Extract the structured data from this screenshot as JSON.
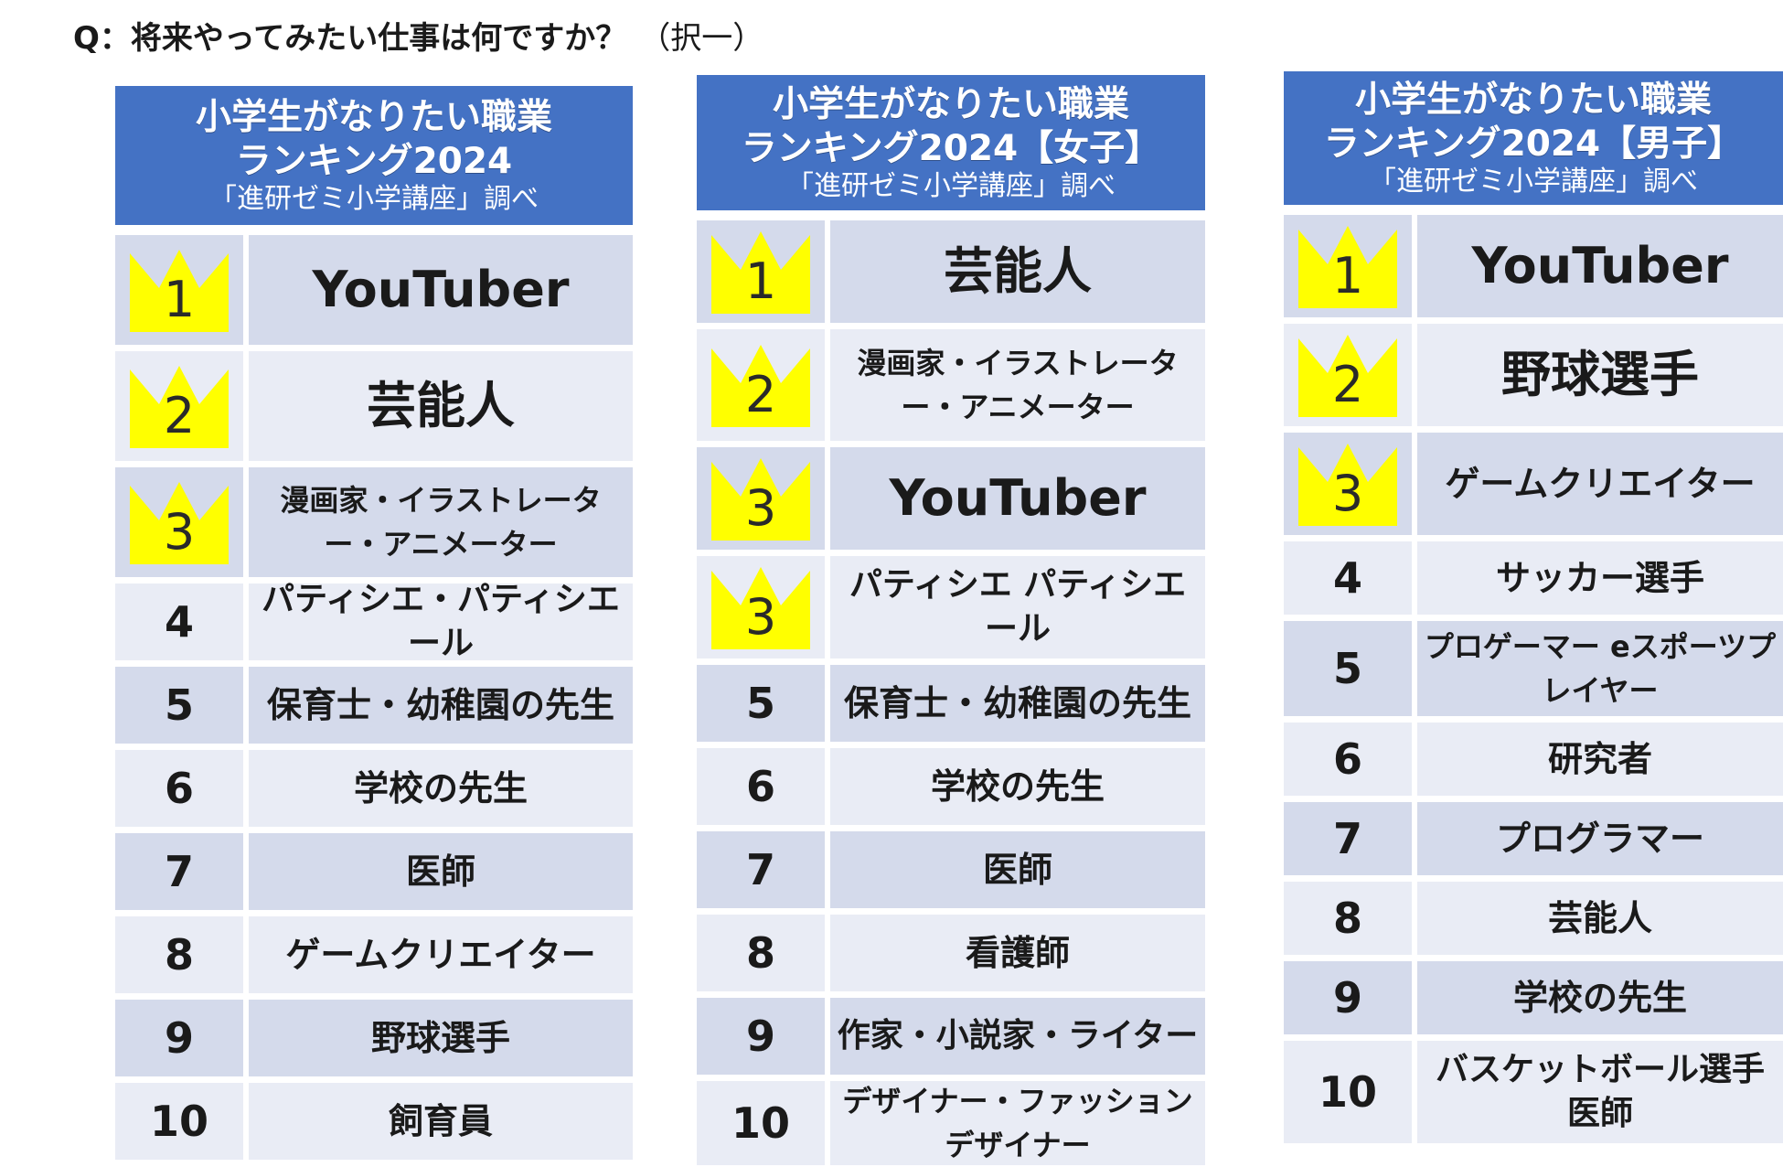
{
  "question": {
    "text": "Q：将来やってみたい仕事は何ですか？",
    "note": "（択一）"
  },
  "colors": {
    "header": "#4472c4",
    "row_dark": "#d4daeb",
    "row_light": "#e9ecf5",
    "crown": "#ffff00"
  },
  "tables": [
    {
      "header": {
        "line1": "小学生がなりたい職業",
        "line2": "ランキング2024",
        "line3": "「進研ゼミ小学講座」調べ"
      },
      "rows": [
        {
          "rank": "1",
          "job": "YouTuber",
          "crown": true
        },
        {
          "rank": "2",
          "job": "芸能人",
          "crown": true
        },
        {
          "rank": "3",
          "job": "漫画家・イラストレーター・アニメーター",
          "crown": true
        },
        {
          "rank": "4",
          "job": "パティシエ・パティシエール",
          "crown": false
        },
        {
          "rank": "5",
          "job": "保育士・幼稚園の先生",
          "crown": false
        },
        {
          "rank": "6",
          "job": "学校の先生",
          "crown": false
        },
        {
          "rank": "7",
          "job": "医師",
          "crown": false
        },
        {
          "rank": "8",
          "job": "ゲームクリエイター",
          "crown": false
        },
        {
          "rank": "9",
          "job": "野球選手",
          "crown": false
        },
        {
          "rank": "10",
          "job": "飼育員",
          "crown": false
        }
      ]
    },
    {
      "header": {
        "line1": "小学生がなりたい職業",
        "line2": "ランキング2024【女子】",
        "line3": "「進研ゼミ小学講座」調べ"
      },
      "rows": [
        {
          "rank": "1",
          "job": "芸能人",
          "crown": true
        },
        {
          "rank": "2",
          "job": "漫画家・イラストレーター・アニメーター",
          "crown": true
        },
        {
          "rank": "3",
          "job": "YouTuber",
          "crown": true
        },
        {
          "rank": "3",
          "job": "パティシエ パティシエール",
          "crown": true
        },
        {
          "rank": "5",
          "job": "保育士・幼稚園の先生",
          "crown": false
        },
        {
          "rank": "6",
          "job": "学校の先生",
          "crown": false
        },
        {
          "rank": "7",
          "job": "医師",
          "crown": false
        },
        {
          "rank": "8",
          "job": "看護師",
          "crown": false
        },
        {
          "rank": "9",
          "job": "作家・小説家・ライター",
          "crown": false
        },
        {
          "rank": "10",
          "job": "デザイナー・ファッションデザイナー",
          "crown": false
        }
      ]
    },
    {
      "header": {
        "line1": "小学生がなりたい職業",
        "line2": "ランキング2024【男子】",
        "line3": "「進研ゼミ小学講座」調べ"
      },
      "rows": [
        {
          "rank": "1",
          "job": "YouTuber",
          "crown": true
        },
        {
          "rank": "2",
          "job": "野球選手",
          "crown": true
        },
        {
          "rank": "3",
          "job": "ゲームクリエイター",
          "crown": true
        },
        {
          "rank": "4",
          "job": "サッカー選手",
          "crown": false
        },
        {
          "rank": "5",
          "job": "プロゲーマー eスポーツプレイヤー",
          "crown": false
        },
        {
          "rank": "6",
          "job": "研究者",
          "crown": false
        },
        {
          "rank": "7",
          "job": "プログラマー",
          "crown": false
        },
        {
          "rank": "8",
          "job": "芸能人",
          "crown": false
        },
        {
          "rank": "9",
          "job": "学校の先生",
          "crown": false
        },
        {
          "rank": "10",
          "job": "バスケットボール選手 医師",
          "crown": false
        }
      ]
    }
  ]
}
